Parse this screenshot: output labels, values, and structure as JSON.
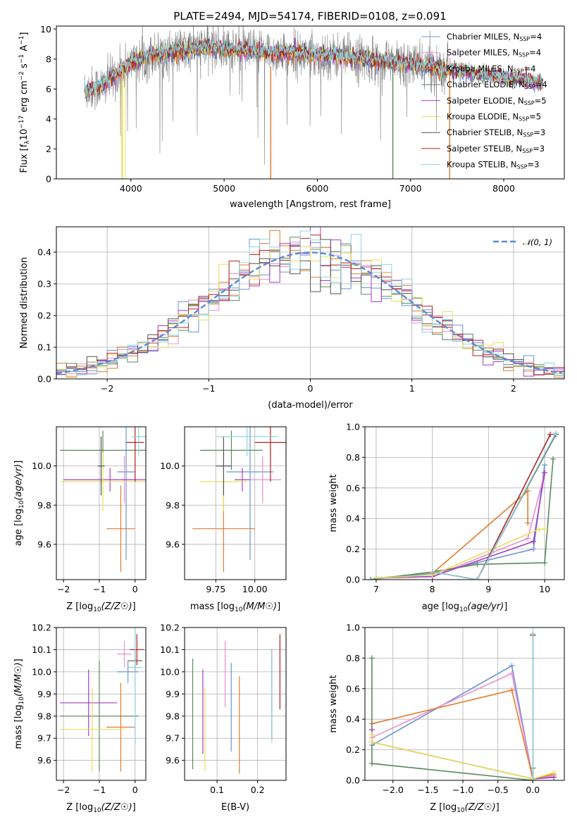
{
  "figure": {
    "title": "PLATE=2494, MJD=54174, FIBERID=0108, z=0.091"
  },
  "colors": {
    "cm": "#1f77b4",
    "sm": "#e377c2",
    "km": "#ff7f0e",
    "ce": "#2ca02c",
    "se": "#9467bd",
    "ke": "#d4d44a",
    "cs": "#7f7f7f",
    "ss": "#d62728",
    "ks": "#17becf",
    "data": "#808080",
    "ref": "#5b8bd9"
  },
  "models": [
    {
      "name": "Chabrier MILES, N_SSP=4",
      "base": "Chabrier MILES, N",
      "sub": "SSP",
      "tail": "=4",
      "color": "#6b93d6"
    },
    {
      "name": "Salpeter MILES, N_SSP=4",
      "base": "Salpeter MILES, N",
      "sub": "SSP",
      "tail": "=4",
      "color": "#e88fcf"
    },
    {
      "name": "Kroupa MILES, N_SSP=4",
      "base": "Kroupa MILES, N",
      "sub": "SSP",
      "tail": "=4",
      "color": "#e07b2e"
    },
    {
      "name": "Chabrier ELODIE, N_SSP=4",
      "base": "Chabrier ELODIE, N",
      "sub": "SSP",
      "tail": "=4",
      "color": "#5a8a5e"
    },
    {
      "name": "Salpeter ELODIE, N_SSP=5",
      "base": "Salpeter ELODIE, N",
      "sub": "SSP",
      "tail": "=5",
      "color": "#a23fc4"
    },
    {
      "name": "Kroupa ELODIE, N_SSP=5",
      "base": "Kroupa ELODIE, N",
      "sub": "SSP",
      "tail": "=5",
      "color": "#e6e05a"
    },
    {
      "name": "Chabrier STELIB, N_SSP=3",
      "base": "Chabrier STELIB, N",
      "sub": "SSP",
      "tail": "=3",
      "color": "#555555"
    },
    {
      "name": "Salpeter STELIB, N_SSP=3",
      "base": "Salpeter STELIB, N",
      "sub": "SSP",
      "tail": "=3",
      "color": "#b22222"
    },
    {
      "name": "Kroupa STELIB, N_SSP=3",
      "base": "Kroupa STELIB, N",
      "sub": "SSP",
      "tail": "=3",
      "color": "#8fd3dc"
    }
  ],
  "chart_data": [
    {
      "id": "spectrum",
      "type": "line",
      "title": "PLATE=2494, MJD=54174, FIBERID=0108, z=0.091",
      "xlabel": "wavelength [Angstrom, rest frame]",
      "ylabel": "Flux [f_λ 10^-17 erg cm^-2 s^-1 A^-1]",
      "xlim": [
        3200,
        8650
      ],
      "ylim": [
        0,
        10.2
      ],
      "xticks": [
        4000,
        5000,
        6000,
        7000,
        8000
      ],
      "yticks": [
        0,
        2,
        4,
        6,
        8,
        10
      ],
      "wavelength_range": [
        3500,
        8420
      ],
      "continuum_points": [
        [
          3500,
          5.9
        ],
        [
          3700,
          6.2
        ],
        [
          3850,
          7.0
        ],
        [
          4000,
          7.8
        ],
        [
          4200,
          8.2
        ],
        [
          4500,
          8.5
        ],
        [
          4800,
          8.8
        ],
        [
          5000,
          8.7
        ],
        [
          5300,
          8.5
        ],
        [
          5600,
          8.4
        ],
        [
          5900,
          8.3
        ],
        [
          6200,
          8.2
        ],
        [
          6500,
          8.0
        ],
        [
          6800,
          7.8
        ],
        [
          7100,
          7.6
        ],
        [
          7400,
          7.3
        ],
        [
          7700,
          7.0
        ],
        [
          8000,
          6.8
        ],
        [
          8200,
          6.6
        ],
        [
          8420,
          6.4
        ]
      ],
      "legend_position": "upper right",
      "grid": false
    },
    {
      "id": "residuals",
      "type": "histogram",
      "xlabel": "(data-model)/error",
      "ylabel": "Normed distribution",
      "xlim": [
        -2.5,
        2.5
      ],
      "ylim": [
        0,
        0.48
      ],
      "xticks": [
        -2,
        -1,
        0,
        1,
        2
      ],
      "yticks": [
        0.0,
        0.1,
        0.2,
        0.3,
        0.4
      ],
      "reference_curve": "N(0,1)",
      "reference_label": "𝒩(0, 1)",
      "legend_position": "upper right",
      "grid": true
    },
    {
      "id": "age_vs_Z",
      "type": "errorbar",
      "xlabel": "Z [log10(Z/Z☉)]",
      "ylabel": "age [log10(age/yr)]",
      "xlim": [
        -2.2,
        0.3
      ],
      "ylim": [
        9.42,
        10.2
      ],
      "xticks": [
        -2,
        -1,
        0
      ],
      "yticks": [
        9.6,
        9.8,
        10.0
      ],
      "points": [
        {
          "model": 0,
          "x": -0.25,
          "y": 9.97,
          "xerr": 0.25,
          "yerr": 0.45
        },
        {
          "model": 1,
          "x": -0.3,
          "y": 9.93,
          "xerr": 0.3,
          "yerr": 0.12
        },
        {
          "model": 2,
          "x": -0.4,
          "y": 9.68,
          "xerr": 0.4,
          "yerr": 0.22
        },
        {
          "model": 3,
          "x": -0.9,
          "y": 10.08,
          "xerr": 1.2,
          "yerr": 0.1
        },
        {
          "model": 4,
          "x": -0.7,
          "y": 9.93,
          "xerr": 1.3,
          "yerr": 0.06
        },
        {
          "model": 5,
          "x": -0.9,
          "y": 9.92,
          "xerr": 1.2,
          "yerr": 0.15
        },
        {
          "model": 6,
          "x": -0.95,
          "y": 10.0,
          "xerr": 0.1,
          "yerr": 0.15
        },
        {
          "model": 7,
          "x": 0.0,
          "y": 10.12,
          "xerr": 0.25,
          "yerr": 0.2
        },
        {
          "model": 8,
          "x": 0.1,
          "y": 10.15,
          "xerr": 0.2,
          "yerr": 0.1
        }
      ]
    },
    {
      "id": "age_vs_mass",
      "type": "errorbar",
      "xlabel": "mass [log10(M/M☉)]",
      "ylabel": "",
      "xlim": [
        9.55,
        10.2
      ],
      "ylim": [
        9.42,
        10.2
      ],
      "xticks": [
        9.75,
        10.0
      ],
      "yticks": [
        9.6,
        9.8,
        10.0
      ],
      "points": [
        {
          "model": 0,
          "x": 9.97,
          "y": 9.97,
          "xerr": 0.15,
          "yerr": 0.45
        },
        {
          "model": 1,
          "x": 10.05,
          "y": 9.93,
          "xerr": 0.12,
          "yerr": 0.12
        },
        {
          "model": 2,
          "x": 9.8,
          "y": 9.68,
          "xerr": 0.2,
          "yerr": 0.22
        },
        {
          "model": 3,
          "x": 9.85,
          "y": 10.08,
          "xerr": 0.2,
          "yerr": 0.1
        },
        {
          "model": 4,
          "x": 9.92,
          "y": 9.93,
          "xerr": 0.05,
          "yerr": 0.06
        },
        {
          "model": 5,
          "x": 9.8,
          "y": 9.92,
          "xerr": 0.15,
          "yerr": 0.15
        },
        {
          "model": 6,
          "x": 9.8,
          "y": 10.0,
          "xerr": 0.05,
          "yerr": 0.15
        },
        {
          "model": 7,
          "x": 10.1,
          "y": 10.12,
          "xerr": 0.1,
          "yerr": 0.2
        },
        {
          "model": 8,
          "x": 9.95,
          "y": 10.15,
          "xerr": 0.2,
          "yerr": 0.1
        }
      ]
    },
    {
      "id": "weight_vs_age",
      "type": "line",
      "xlabel": "age [log10(age/yr)]",
      "ylabel": "mass weight",
      "xlim": [
        6.8,
        10.35
      ],
      "ylim": [
        0,
        1.0
      ],
      "xticks": [
        7,
        8,
        9,
        10
      ],
      "yticks": [
        0.0,
        0.2,
        0.4,
        0.6,
        0.8,
        1.0
      ],
      "series": [
        {
          "model": 0,
          "points": [
            [
              7.0,
              0.01
            ],
            [
              8.0,
              0.04
            ],
            [
              9.8,
              0.2
            ],
            [
              10.0,
              0.75
            ]
          ]
        },
        {
          "model": 1,
          "points": [
            [
              7.0,
              0.01
            ],
            [
              8.0,
              0.02
            ],
            [
              9.7,
              0.27
            ],
            [
              10.0,
              0.7
            ]
          ]
        },
        {
          "model": 2,
          "points": [
            [
              8.0,
              0.04
            ],
            [
              9.7,
              0.58
            ],
            [
              9.7,
              0.37
            ]
          ]
        },
        {
          "model": 3,
          "points": [
            [
              6.9,
              0.0
            ],
            [
              8.0,
              0.05
            ],
            [
              8.8,
              0.1
            ],
            [
              10.0,
              0.11
            ],
            [
              10.15,
              0.79
            ]
          ]
        },
        {
          "model": 4,
          "points": [
            [
              7.0,
              0.01
            ],
            [
              8.0,
              0.02
            ],
            [
              9.8,
              0.25
            ],
            [
              10.0,
              0.7
            ]
          ]
        },
        {
          "model": 5,
          "points": [
            [
              7.0,
              0.01
            ],
            [
              8.0,
              0.03
            ],
            [
              9.9,
              0.33
            ],
            [
              10.0,
              0.33
            ]
          ]
        },
        {
          "model": 6,
          "points": [
            [
              8.0,
              0.05
            ],
            [
              8.8,
              0.0
            ],
            [
              10.2,
              0.95
            ]
          ]
        },
        {
          "model": 7,
          "points": [
            [
              8.0,
              0.05
            ],
            [
              8.8,
              0.0
            ],
            [
              10.1,
              0.95
            ]
          ]
        },
        {
          "model": 8,
          "points": [
            [
              8.0,
              0.05
            ],
            [
              8.8,
              0.0
            ],
            [
              10.2,
              0.96
            ]
          ]
        }
      ]
    },
    {
      "id": "mass_vs_Z",
      "type": "errorbar",
      "xlabel": "Z [log10(Z/Z☉)]",
      "ylabel": "mass [log10(M/M☉)]",
      "xlim": [
        -2.2,
        0.3
      ],
      "ylim": [
        9.51,
        10.2
      ],
      "xticks": [
        -2,
        -1,
        0
      ],
      "yticks": [
        9.6,
        9.7,
        9.8,
        9.9,
        10.0,
        10.1,
        10.2
      ],
      "points": [
        {
          "model": 0,
          "x": -0.2,
          "y": 10.0,
          "xerr": 0.3,
          "yerr": 0.05
        },
        {
          "model": 1,
          "x": -0.3,
          "y": 10.08,
          "xerr": 0.2,
          "yerr": 0.06
        },
        {
          "model": 2,
          "x": -0.4,
          "y": 9.75,
          "xerr": 0.4,
          "yerr": 0.2
        },
        {
          "model": 3,
          "x": -1.0,
          "y": 9.8,
          "xerr": 1.1,
          "yerr": 0.25
        },
        {
          "model": 4,
          "x": -1.3,
          "y": 9.86,
          "xerr": 0.8,
          "yerr": 0.15
        },
        {
          "model": 5,
          "x": -1.2,
          "y": 9.74,
          "xerr": 0.9,
          "yerr": 0.19
        },
        {
          "model": 6,
          "x": 0.0,
          "y": 10.05,
          "xerr": 0.2,
          "yerr": 0.05
        },
        {
          "model": 7,
          "x": 0.05,
          "y": 10.1,
          "xerr": 0.2,
          "yerr": 0.07
        },
        {
          "model": 8,
          "x": 0.0,
          "y": 10.02,
          "xerr": 0.2,
          "yerr": 0.35
        }
      ]
    },
    {
      "id": "mass_vs_ebv",
      "type": "errorbar",
      "xlabel": "E(B-V)",
      "ylabel": "",
      "xlim": [
        0.02,
        0.27
      ],
      "ylim": [
        9.51,
        10.2
      ],
      "xticks": [
        0.1,
        0.2
      ],
      "yticks": [
        9.6,
        9.7,
        9.8,
        9.9,
        10.0,
        10.1,
        10.2
      ],
      "points": [
        {
          "model": 0,
          "x": 0.135,
          "y": 9.84,
          "xerr": 0,
          "yerr": 0.2
        },
        {
          "model": 1,
          "x": 0.12,
          "y": 9.99,
          "xerr": 0,
          "yerr": 0.15
        },
        {
          "model": 2,
          "x": 0.155,
          "y": 9.76,
          "xerr": 0,
          "yerr": 0.22
        },
        {
          "model": 3,
          "x": 0.04,
          "y": 9.81,
          "xerr": 0,
          "yerr": 0.25
        },
        {
          "model": 4,
          "x": 0.065,
          "y": 9.82,
          "xerr": 0,
          "yerr": 0.19
        },
        {
          "model": 5,
          "x": 0.07,
          "y": 9.74,
          "xerr": 0,
          "yerr": 0.19
        },
        {
          "model": 6,
          "x": 0.235,
          "y": 9.9,
          "xerr": 0,
          "yerr": 0.2
        },
        {
          "model": 7,
          "x": 0.255,
          "y": 10.0,
          "xerr": 0,
          "yerr": 0.17
        },
        {
          "model": 8,
          "x": 0.235,
          "y": 9.89,
          "xerr": 0,
          "yerr": 0.21
        }
      ]
    },
    {
      "id": "weight_vs_Z",
      "type": "line",
      "xlabel": "Z [log10(Z/Z☉)]",
      "ylabel": "mass weight",
      "xlim": [
        -2.4,
        0.45
      ],
      "ylim": [
        0,
        1.0
      ],
      "xticks": [
        -2.0,
        -1.5,
        -1.0,
        -0.5,
        0.0
      ],
      "yticks": [
        0.0,
        0.2,
        0.4,
        0.6,
        0.8,
        1.0
      ],
      "series": [
        {
          "model": 0,
          "points": [
            [
              -2.3,
              0.23
            ],
            [
              -0.3,
              0.75
            ],
            [
              0.0,
              0.01
            ],
            [
              0.3,
              0.02
            ]
          ]
        },
        {
          "model": 1,
          "points": [
            [
              -2.3,
              0.28
            ],
            [
              -0.3,
              0.7
            ],
            [
              0.0,
              0.01
            ],
            [
              0.3,
              0.03
            ]
          ]
        },
        {
          "model": 2,
          "points": [
            [
              -2.3,
              0.37
            ],
            [
              -0.3,
              0.59
            ],
            [
              0.0,
              0.01
            ],
            [
              0.3,
              0.04
            ]
          ]
        },
        {
          "model": 3,
          "points": [
            [
              -2.3,
              0.8
            ],
            [
              -2.3,
              0.11
            ],
            [
              0.0,
              0.0
            ],
            [
              0.0,
              0.08
            ]
          ]
        },
        {
          "model": 4,
          "points": [
            [
              -2.3,
              0.33
            ],
            [
              -2.3,
              0.25
            ],
            [
              0.0,
              0.01
            ],
            [
              0.3,
              0.02
            ]
          ]
        },
        {
          "model": 5,
          "points": [
            [
              -2.3,
              0.3
            ],
            [
              -2.3,
              0.25
            ],
            [
              0.0,
              0.01
            ],
            [
              0.3,
              0.05
            ]
          ]
        },
        {
          "model": 6,
          "points": [
            [
              0.0,
              0.0
            ],
            [
              0.0,
              0.95
            ]
          ]
        },
        {
          "model": 7,
          "points": [
            [
              0.0,
              0.0
            ],
            [
              0.0,
              0.95
            ]
          ]
        },
        {
          "model": 8,
          "points": [
            [
              0.0,
              0.0
            ],
            [
              0.0,
              0.96
            ]
          ]
        }
      ]
    }
  ]
}
